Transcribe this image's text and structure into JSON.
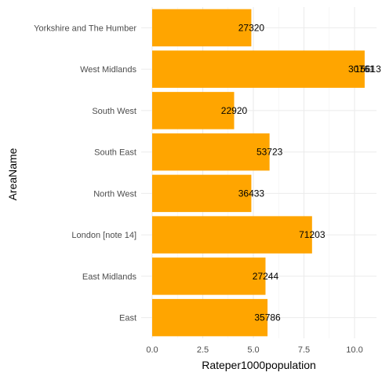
{
  "chart_data": {
    "type": "bar",
    "orientation": "horizontal",
    "xlabel": "Rateper1000population",
    "ylabel": "AreaName",
    "xlim": [
      0,
      10.8
    ],
    "x_ticks": [
      0.0,
      2.5,
      5.0,
      7.5,
      10.0
    ],
    "x_tick_labels": [
      "0.0",
      "2.5",
      "5.0",
      "7.5",
      "10.0"
    ],
    "grid": true,
    "legend": "none",
    "bar_color": "#FFA500",
    "categories": [
      "East",
      "East Midlands",
      "London [note 14]",
      "North West",
      "South East",
      "South West",
      "West Midlands",
      "Yorkshire and The Humber"
    ],
    "values": [
      5.7,
      5.6,
      7.9,
      4.9,
      5.8,
      4.05,
      10.5,
      4.9
    ],
    "data_labels": [
      [
        "35786"
      ],
      [
        "27244"
      ],
      [
        "71203"
      ],
      [
        "36433"
      ],
      [
        "53723"
      ],
      [
        "22920"
      ],
      [
        "30761",
        "15613"
      ],
      [
        "27320"
      ]
    ]
  }
}
